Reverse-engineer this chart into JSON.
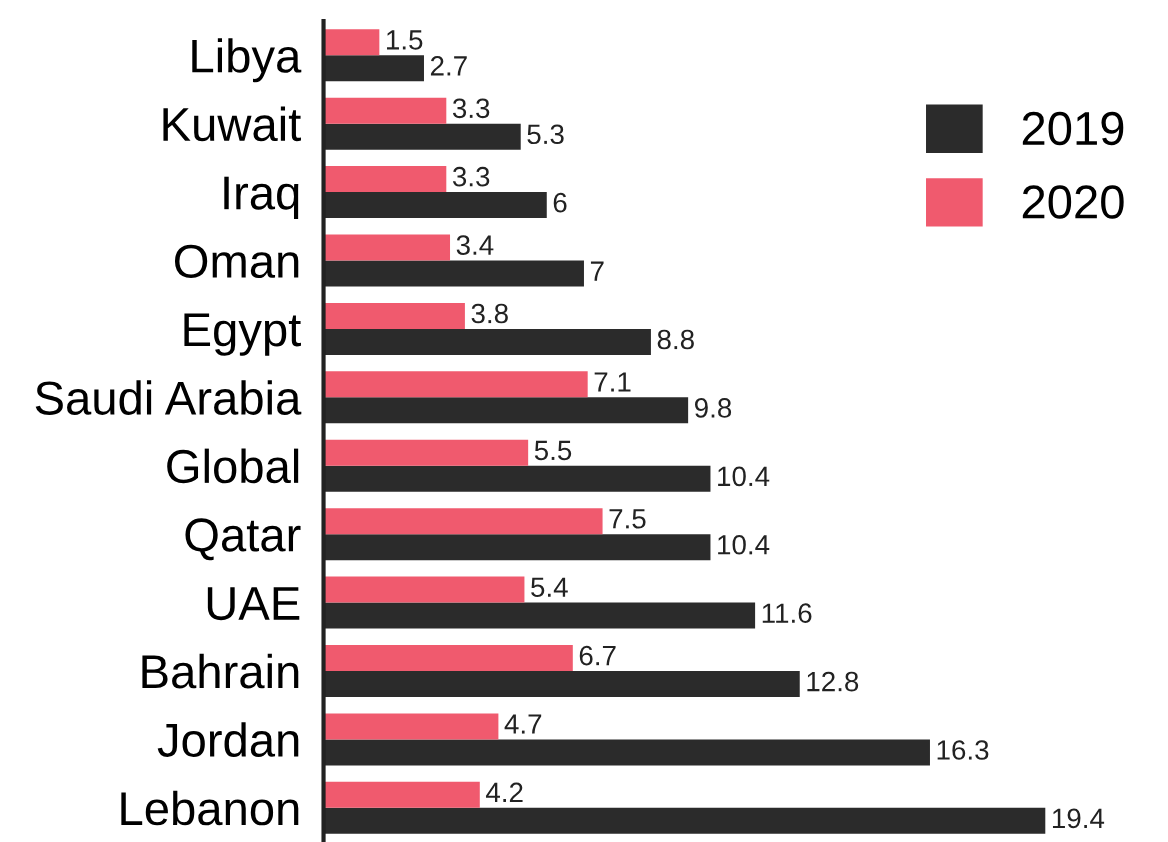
{
  "chart_data": {
    "type": "bar",
    "orientation": "horizontal",
    "categories": [
      "Libya",
      "Kuwait",
      "Iraq",
      "Oman",
      "Egypt",
      "Saudi Arabia",
      "Global",
      "Qatar",
      "UAE",
      "Bahrain",
      "Jordan",
      "Lebanon"
    ],
    "series": [
      {
        "name": "2019",
        "color": "#2b2b2b",
        "values": [
          2.7,
          5.3,
          6,
          7,
          8.8,
          9.8,
          10.4,
          10.4,
          11.6,
          12.8,
          16.3,
          19.4
        ]
      },
      {
        "name": "2020",
        "color": "#f05a6e",
        "values": [
          1.5,
          3.3,
          3.3,
          3.4,
          3.8,
          7.1,
          5.5,
          7.5,
          5.4,
          6.7,
          4.7,
          4.2
        ]
      }
    ],
    "data_labels": true,
    "legend": "top right",
    "grid": false,
    "tick_labels": "y"
  }
}
